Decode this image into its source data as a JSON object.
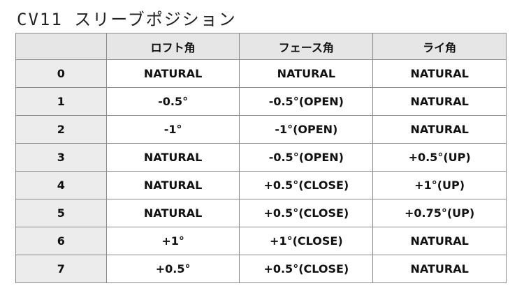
{
  "title": "CV11 スリーブポジション",
  "table": {
    "headers": [
      "",
      "ロフト角",
      "フェース角",
      "ライ角"
    ],
    "rows": [
      [
        "0",
        "NATURAL",
        "NATURAL",
        "NATURAL"
      ],
      [
        "1",
        "-0.5°",
        "-0.5°(OPEN)",
        "NATURAL"
      ],
      [
        "2",
        "-1°",
        "-1°(OPEN)",
        "NATURAL"
      ],
      [
        "3",
        "NATURAL",
        "-0.5°(OPEN)",
        "+0.5°(UP)"
      ],
      [
        "4",
        "NATURAL",
        "+0.5°(CLOSE)",
        "+1°(UP)"
      ],
      [
        "5",
        "NATURAL",
        "+0.5°(CLOSE)",
        "+0.75°(UP)"
      ],
      [
        "6",
        "+1°",
        "+1°(CLOSE)",
        "NATURAL"
      ],
      [
        "7",
        "+0.5°",
        "+0.5°(CLOSE)",
        "NATURAL"
      ]
    ]
  }
}
